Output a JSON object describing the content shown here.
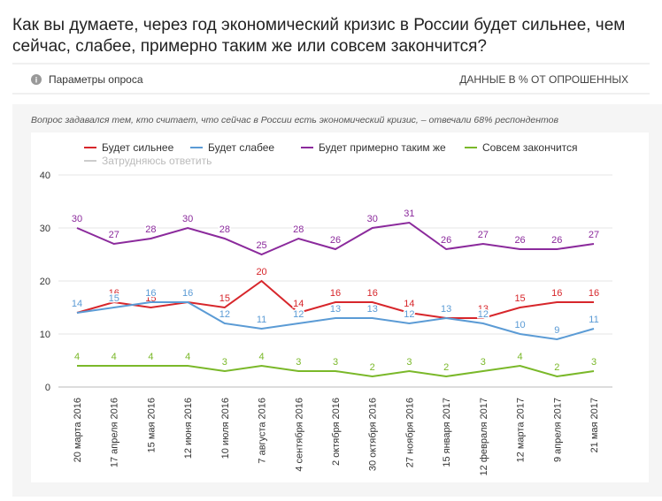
{
  "header": {
    "title_lines": [
      "Как вы думаете, через год экономический кризис в России будет сильнее, чем",
      "сейчас, слабее, примерно таким же или совсем закончится?"
    ],
    "params": "Параметры опроса",
    "units": "ДАННЫЕ В % ОТ ОПРОШЕННЫХ",
    "note": "Вопрос задавался тем, кто считает, что сейчас в России есть экономический кризис, – отвечали 68% респондентов"
  },
  "chart_data": {
    "type": "line",
    "categories": [
      "20 марта 2016",
      "17 апреля 2016",
      "15 мая 2016",
      "12 июня 2016",
      "10 июля 2016",
      "7 августа 2016",
      "4 сентября 2016",
      "2 октября 2016",
      "30 октября 2016",
      "27 ноября 2016",
      "15 января 2017",
      "12 февраля 2017",
      "12 марта 2017",
      "9 апреля 2017",
      "21 мая 2017"
    ],
    "series": [
      {
        "name": "Будет сильнее",
        "color": "#d7262b",
        "values": [
          14,
          16,
          15,
          16,
          15,
          20,
          14,
          16,
          16,
          14,
          13,
          13,
          15,
          16,
          16
        ]
      },
      {
        "name": "Будет слабее",
        "color": "#5b9bd5",
        "values": [
          14,
          15,
          16,
          16,
          12,
          11,
          12,
          13,
          13,
          12,
          13,
          12,
          10,
          9,
          11
        ]
      },
      {
        "name": "Будет примерно таким же",
        "color": "#8b2a9c",
        "values": [
          30,
          27,
          28,
          30,
          28,
          25,
          28,
          26,
          30,
          31,
          26,
          27,
          26,
          26,
          27
        ]
      },
      {
        "name": "Совсем закончится",
        "color": "#7ab829",
        "values": [
          4,
          4,
          4,
          4,
          3,
          4,
          3,
          3,
          2,
          3,
          2,
          3,
          4,
          2,
          3
        ]
      },
      {
        "name": "Затрудняюсь ответить",
        "color": "#cccccc",
        "visible": false,
        "values": [
          null,
          null,
          null,
          null,
          null,
          null,
          null,
          null,
          null,
          null,
          null,
          null,
          null,
          null,
          null
        ]
      }
    ],
    "ylim": [
      0,
      40
    ],
    "yticks": [
      0,
      10,
      20,
      30,
      40
    ],
    "grid": true,
    "data_labels": true
  }
}
